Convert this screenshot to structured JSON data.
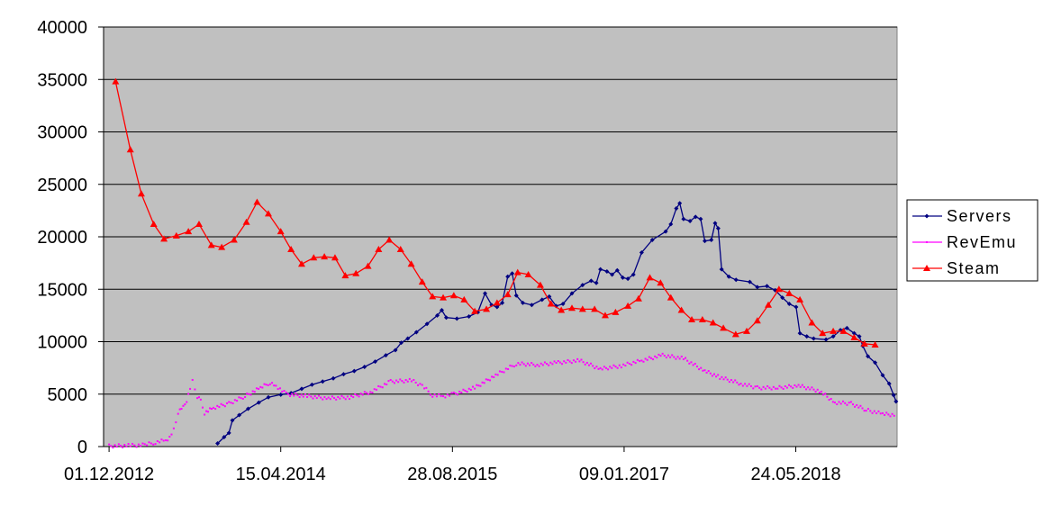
{
  "chart_data": {
    "type": "line",
    "title": "",
    "xlabel": "",
    "ylabel": "",
    "ylim": [
      0,
      40000
    ],
    "xlim": [
      "2012-11-15",
      "2018-12-20"
    ],
    "yticks": [
      0,
      5000,
      10000,
      15000,
      20000,
      25000,
      30000,
      35000,
      40000
    ],
    "ytick_labels": [
      "0",
      "5000",
      "10000",
      "15000",
      "20000",
      "25000",
      "30000",
      "35000",
      "40000"
    ],
    "xticks": [
      "2012-12-01",
      "2014-04-15",
      "2015-08-28",
      "2017-01-09",
      "2018-05-24"
    ],
    "xtick_labels": [
      "01.12.2012",
      "15.04.2014",
      "28.08.2015",
      "09.01.2017",
      "24.05.2018"
    ],
    "grid": true,
    "legend_position": "right",
    "background": "#c0c0c0",
    "series": [
      {
        "name": "Servers",
        "color": "#000080",
        "marker": "diamond",
        "points": [
          [
            "2013-10-13",
            300
          ],
          [
            "2013-11-01",
            900
          ],
          [
            "2013-11-15",
            1300
          ],
          [
            "2013-11-25",
            2500
          ],
          [
            "2013-12-15",
            3000
          ],
          [
            "2014-01-10",
            3600
          ],
          [
            "2014-02-10",
            4200
          ],
          [
            "2014-03-10",
            4700
          ],
          [
            "2014-04-15",
            4950
          ],
          [
            "2014-05-15",
            5100
          ],
          [
            "2014-06-15",
            5500
          ],
          [
            "2014-07-15",
            5900
          ],
          [
            "2014-08-15",
            6200
          ],
          [
            "2014-09-15",
            6500
          ],
          [
            "2014-10-15",
            6900
          ],
          [
            "2014-11-15",
            7200
          ],
          [
            "2014-12-15",
            7600
          ],
          [
            "2015-01-15",
            8100
          ],
          [
            "2015-02-15",
            8700
          ],
          [
            "2015-03-15",
            9200
          ],
          [
            "2015-04-01",
            9900
          ],
          [
            "2015-04-20",
            10300
          ],
          [
            "2015-05-15",
            10900
          ],
          [
            "2015-06-15",
            11700
          ],
          [
            "2015-07-15",
            12500
          ],
          [
            "2015-07-28",
            13000
          ],
          [
            "2015-08-10",
            12300
          ],
          [
            "2015-09-10",
            12200
          ],
          [
            "2015-10-15",
            12400
          ],
          [
            "2015-11-10",
            12800
          ],
          [
            "2015-12-01",
            14600
          ],
          [
            "2015-12-20",
            13500
          ],
          [
            "2016-01-05",
            13300
          ],
          [
            "2016-01-20",
            13700
          ],
          [
            "2016-02-05",
            16200
          ],
          [
            "2016-02-18",
            16500
          ],
          [
            "2016-03-01",
            14400
          ],
          [
            "2016-03-20",
            13700
          ],
          [
            "2016-04-15",
            13500
          ],
          [
            "2016-05-15",
            14000
          ],
          [
            "2016-06-05",
            14300
          ],
          [
            "2016-06-25",
            13400
          ],
          [
            "2016-07-15",
            13600
          ],
          [
            "2016-08-10",
            14600
          ],
          [
            "2016-09-10",
            15400
          ],
          [
            "2016-10-05",
            15800
          ],
          [
            "2016-10-20",
            15600
          ],
          [
            "2016-11-01",
            16900
          ],
          [
            "2016-11-20",
            16700
          ],
          [
            "2016-12-05",
            16400
          ],
          [
            "2016-12-20",
            16800
          ],
          [
            "2017-01-05",
            16100
          ],
          [
            "2017-01-20",
            16000
          ],
          [
            "2017-02-05",
            16400
          ],
          [
            "2017-03-01",
            18500
          ],
          [
            "2017-04-01",
            19700
          ],
          [
            "2017-05-10",
            20500
          ],
          [
            "2017-05-25",
            21200
          ],
          [
            "2017-06-10",
            22700
          ],
          [
            "2017-06-20",
            23200
          ],
          [
            "2017-07-01",
            21700
          ],
          [
            "2017-07-20",
            21500
          ],
          [
            "2017-08-05",
            21900
          ],
          [
            "2017-08-20",
            21700
          ],
          [
            "2017-09-01",
            19600
          ],
          [
            "2017-09-20",
            19700
          ],
          [
            "2017-10-01",
            21300
          ],
          [
            "2017-10-10",
            20800
          ],
          [
            "2017-10-20",
            16900
          ],
          [
            "2017-11-10",
            16200
          ],
          [
            "2017-12-01",
            15900
          ],
          [
            "2018-01-10",
            15700
          ],
          [
            "2018-02-01",
            15200
          ],
          [
            "2018-03-01",
            15300
          ],
          [
            "2018-03-25",
            14900
          ],
          [
            "2018-04-15",
            14200
          ],
          [
            "2018-05-05",
            13600
          ],
          [
            "2018-05-25",
            13300
          ],
          [
            "2018-06-05",
            10800
          ],
          [
            "2018-06-25",
            10500
          ],
          [
            "2018-07-15",
            10300
          ],
          [
            "2018-08-20",
            10200
          ],
          [
            "2018-09-10",
            10500
          ],
          [
            "2018-10-01",
            11100
          ],
          [
            "2018-10-20",
            11300
          ],
          [
            "2018-11-10",
            10800
          ],
          [
            "2018-11-25",
            10500
          ],
          [
            "2018-12-05",
            9600
          ],
          [
            "2018-12-20",
            8600
          ],
          [
            "2019-01-10",
            8000
          ],
          [
            "2019-02-01",
            6800
          ],
          [
            "2019-02-20",
            6000
          ],
          [
            "2019-03-05",
            4900
          ],
          [
            "2019-03-12",
            4300
          ]
        ]
      },
      {
        "name": "RevEmu",
        "color": "#ff00ff",
        "marker": "dot",
        "points": [
          [
            "2012-12-01",
            50
          ],
          [
            "2013-02-01",
            100
          ],
          [
            "2013-03-15",
            150
          ],
          [
            "2013-04-15",
            400
          ],
          [
            "2013-05-15",
            600
          ],
          [
            "2013-06-01",
            1000
          ],
          [
            "2013-06-20",
            3200
          ],
          [
            "2013-07-05",
            3800
          ],
          [
            "2013-07-15",
            4400
          ],
          [
            "2013-07-25",
            5500
          ],
          [
            "2013-08-01",
            6200
          ],
          [
            "2013-08-15",
            4700
          ],
          [
            "2013-08-25",
            4400
          ],
          [
            "2013-09-05",
            3200
          ],
          [
            "2013-10-01",
            3700
          ],
          [
            "2013-11-15",
            4100
          ],
          [
            "2014-01-01",
            4800
          ],
          [
            "2014-02-15",
            5600
          ],
          [
            "2014-03-15",
            6100
          ],
          [
            "2014-04-01",
            5800
          ],
          [
            "2014-05-01",
            5000
          ],
          [
            "2014-07-01",
            4800
          ],
          [
            "2014-09-01",
            4600
          ],
          [
            "2014-11-01",
            4700
          ],
          [
            "2015-01-01",
            5200
          ],
          [
            "2015-03-01",
            6200
          ],
          [
            "2015-05-01",
            6300
          ],
          [
            "2015-06-01",
            5800
          ],
          [
            "2015-07-01",
            4900
          ],
          [
            "2015-08-01",
            4800
          ],
          [
            "2015-09-01",
            5000
          ],
          [
            "2015-11-01",
            5600
          ],
          [
            "2016-01-01",
            6800
          ],
          [
            "2016-03-01",
            7900
          ],
          [
            "2016-05-01",
            7800
          ],
          [
            "2016-07-01",
            8000
          ],
          [
            "2016-09-01",
            8200
          ],
          [
            "2016-11-01",
            7400
          ],
          [
            "2017-01-01",
            7700
          ],
          [
            "2017-03-01",
            8200
          ],
          [
            "2017-05-01",
            8700
          ],
          [
            "2017-07-01",
            8400
          ],
          [
            "2017-09-01",
            7200
          ],
          [
            "2017-10-15",
            6600
          ],
          [
            "2017-12-15",
            6000
          ],
          [
            "2018-02-01",
            5600
          ],
          [
            "2018-04-01",
            5600
          ],
          [
            "2018-06-01",
            5800
          ],
          [
            "2018-08-01",
            5300
          ],
          [
            "2018-09-15",
            4200
          ],
          [
            "2018-11-01",
            4100
          ],
          [
            "2018-12-15",
            3500
          ],
          [
            "2019-02-01",
            3100
          ],
          [
            "2019-03-12",
            3000
          ]
        ]
      },
      {
        "name": "Steam",
        "color": "#ff0000",
        "marker": "triangle",
        "points": [
          [
            "2012-12-20",
            34800
          ],
          [
            "2013-02-01",
            28300
          ],
          [
            "2013-03-05",
            24100
          ],
          [
            "2013-04-10",
            21200
          ],
          [
            "2013-05-10",
            19800
          ],
          [
            "2013-06-15",
            20100
          ],
          [
            "2013-07-20",
            20500
          ],
          [
            "2013-08-20",
            21200
          ],
          [
            "2013-09-25",
            19200
          ],
          [
            "2013-10-25",
            19000
          ],
          [
            "2013-11-30",
            19700
          ],
          [
            "2014-01-05",
            21400
          ],
          [
            "2014-02-05",
            23300
          ],
          [
            "2014-03-10",
            22200
          ],
          [
            "2014-04-15",
            20500
          ],
          [
            "2014-05-15",
            18800
          ],
          [
            "2014-06-15",
            17400
          ],
          [
            "2014-07-20",
            18000
          ],
          [
            "2014-08-20",
            18100
          ],
          [
            "2014-09-20",
            18000
          ],
          [
            "2014-10-20",
            16300
          ],
          [
            "2014-11-20",
            16500
          ],
          [
            "2014-12-25",
            17200
          ],
          [
            "2015-01-25",
            18800
          ],
          [
            "2015-02-25",
            19700
          ],
          [
            "2015-03-30",
            18800
          ],
          [
            "2015-04-30",
            17400
          ],
          [
            "2015-06-01",
            15700
          ],
          [
            "2015-07-01",
            14300
          ],
          [
            "2015-08-01",
            14200
          ],
          [
            "2015-09-01",
            14400
          ],
          [
            "2015-10-01",
            14000
          ],
          [
            "2015-11-01",
            12900
          ],
          [
            "2015-12-05",
            13100
          ],
          [
            "2016-01-05",
            13700
          ],
          [
            "2016-02-05",
            14500
          ],
          [
            "2016-03-05",
            16600
          ],
          [
            "2016-04-05",
            16400
          ],
          [
            "2016-05-10",
            15400
          ],
          [
            "2016-06-10",
            13600
          ],
          [
            "2016-07-10",
            13000
          ],
          [
            "2016-08-10",
            13200
          ],
          [
            "2016-09-10",
            13100
          ],
          [
            "2016-10-15",
            13100
          ],
          [
            "2016-11-15",
            12500
          ],
          [
            "2016-12-15",
            12800
          ],
          [
            "2017-01-20",
            13400
          ],
          [
            "2017-02-20",
            14100
          ],
          [
            "2017-03-25",
            16100
          ],
          [
            "2017-04-25",
            15600
          ],
          [
            "2017-05-25",
            14200
          ],
          [
            "2017-06-25",
            13000
          ],
          [
            "2017-07-25",
            12100
          ],
          [
            "2017-08-25",
            12100
          ],
          [
            "2017-09-25",
            11800
          ],
          [
            "2017-10-25",
            11300
          ],
          [
            "2017-11-30",
            10700
          ],
          [
            "2018-01-01",
            11000
          ],
          [
            "2018-02-01",
            12000
          ],
          [
            "2018-03-05",
            13500
          ],
          [
            "2018-04-05",
            15000
          ],
          [
            "2018-05-05",
            14600
          ],
          [
            "2018-06-05",
            14000
          ],
          [
            "2018-07-10",
            11800
          ],
          [
            "2018-08-10",
            10800
          ],
          [
            "2018-09-10",
            11000
          ],
          [
            "2018-10-10",
            11000
          ],
          [
            "2018-11-10",
            10400
          ],
          [
            "2018-12-10",
            9800
          ],
          [
            "2019-01-10",
            9700
          ]
        ]
      }
    ]
  }
}
